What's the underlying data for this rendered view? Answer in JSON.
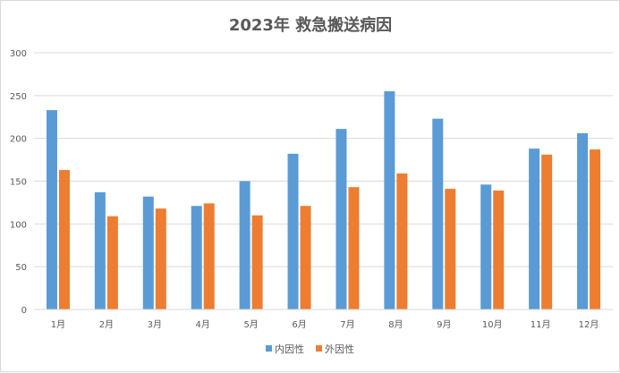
{
  "chart_data": {
    "type": "bar",
    "title": "2023年 救急搬送病因",
    "categories": [
      "1月",
      "2月",
      "3月",
      "4月",
      "5月",
      "6月",
      "7月",
      "8月",
      "9月",
      "10月",
      "11月",
      "12月"
    ],
    "series": [
      {
        "name": "内因性",
        "color": "#5b9bd5",
        "values": [
          233,
          137,
          132,
          121,
          150,
          182,
          211,
          255,
          223,
          146,
          188,
          206
        ]
      },
      {
        "name": "外因性",
        "color": "#ed7d31",
        "values": [
          163,
          109,
          118,
          124,
          110,
          121,
          143,
          159,
          141,
          139,
          181,
          187
        ]
      }
    ],
    "ylim": [
      0,
      300
    ],
    "yticks": [
      0,
      50,
      100,
      150,
      200,
      250,
      300
    ],
    "xlabel": "",
    "ylabel": "",
    "grid": true,
    "legend": "bottom"
  }
}
